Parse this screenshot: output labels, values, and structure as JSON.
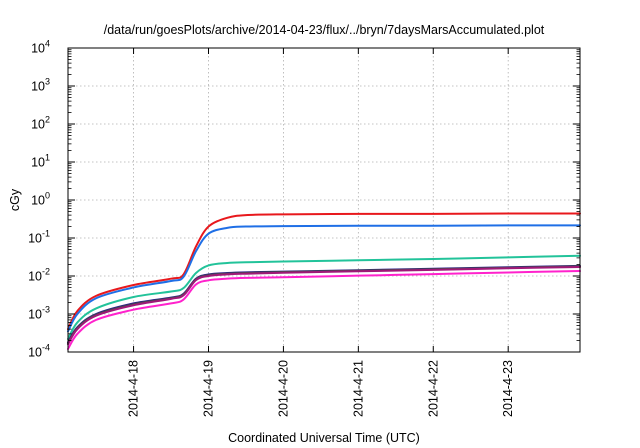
{
  "chart_data": {
    "type": "line",
    "title": "/data/run/goesPlots/archive/2014-04-23/flux/../bryn/7daysMarsAccumulated.plot",
    "xlabel": "Coordinated Universal Time (UTC)",
    "ylabel": "cGy",
    "yscale": "log",
    "xlim": [
      "2014-04-17 03:00",
      "2014-04-23 23:00"
    ],
    "ylim": [
      0.0001,
      10000
    ],
    "grid": true,
    "legend": "none",
    "x_ticks": [
      "2014-4-18",
      "2014-4-19",
      "2014-4-20",
      "2014-4-21",
      "2014-4-22",
      "2014-4-23"
    ],
    "y_ticks": [
      {
        "value": 0.0001,
        "base": "10",
        "exp": "-4"
      },
      {
        "value": 0.001,
        "base": "10",
        "exp": "-3"
      },
      {
        "value": 0.01,
        "base": "10",
        "exp": "-2"
      },
      {
        "value": 0.1,
        "base": "10",
        "exp": "-1"
      },
      {
        "value": 1,
        "base": "10",
        "exp": "0"
      },
      {
        "value": 10,
        "base": "10",
        "exp": "1"
      },
      {
        "value": 100,
        "base": "10",
        "exp": "2"
      },
      {
        "value": 1000,
        "base": "10",
        "exp": "3"
      },
      {
        "value": 10000,
        "base": "10",
        "exp": "4"
      }
    ],
    "x": [
      "2014-04-17 03:00",
      "2014-04-17 06:00",
      "2014-04-17 12:00",
      "2014-04-18 00:00",
      "2014-04-18 12:00",
      "2014-04-18 16:00",
      "2014-04-18 20:00",
      "2014-04-19 00:00",
      "2014-04-19 06:00",
      "2014-04-19 12:00",
      "2014-04-20 00:00",
      "2014-04-21 00:00",
      "2014-04-22 00:00",
      "2014-04-23 00:00",
      "2014-04-23 23:00"
    ],
    "series": [
      {
        "color": "#e8181c",
        "values": [
          0.0004,
          0.0012,
          0.003,
          0.0058,
          0.0085,
          0.011,
          0.06,
          0.2,
          0.34,
          0.4,
          0.42,
          0.43,
          0.43,
          0.44,
          0.44
        ]
      },
      {
        "color": "#1f6fe6",
        "values": [
          0.00035,
          0.001,
          0.0026,
          0.005,
          0.0074,
          0.0095,
          0.045,
          0.13,
          0.185,
          0.2,
          0.205,
          0.21,
          0.21,
          0.215,
          0.215
        ]
      },
      {
        "color": "#22c39a",
        "values": [
          0.00022,
          0.0006,
          0.0014,
          0.0028,
          0.0039,
          0.0048,
          0.012,
          0.019,
          0.022,
          0.023,
          0.024,
          0.026,
          0.028,
          0.031,
          0.034
        ]
      },
      {
        "color": "#2a1f8a",
        "values": [
          0.00018,
          0.00045,
          0.001,
          0.0019,
          0.0027,
          0.0034,
          0.0085,
          0.011,
          0.012,
          0.0125,
          0.013,
          0.0142,
          0.0155,
          0.017,
          0.0185
        ]
      },
      {
        "color": "#4a4a4a",
        "values": [
          0.00017,
          0.00043,
          0.00095,
          0.0018,
          0.0026,
          0.0033,
          0.0082,
          0.0105,
          0.0115,
          0.012,
          0.0127,
          0.0138,
          0.015,
          0.0165,
          0.018
        ]
      },
      {
        "color": "#a01878",
        "values": [
          0.00016,
          0.0004,
          0.0009,
          0.0017,
          0.0025,
          0.0031,
          0.0078,
          0.01,
          0.011,
          0.0115,
          0.0122,
          0.0133,
          0.0145,
          0.016,
          0.0172
        ]
      },
      {
        "color": "#ff22cc",
        "values": [
          0.00012,
          0.0003,
          0.0007,
          0.0013,
          0.0019,
          0.0024,
          0.006,
          0.0077,
          0.0085,
          0.0089,
          0.0093,
          0.0102,
          0.0112,
          0.0124,
          0.0135
        ]
      }
    ]
  }
}
